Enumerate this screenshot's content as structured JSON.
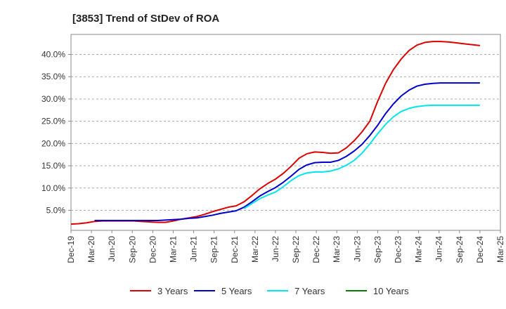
{
  "chart_data": {
    "type": "line",
    "title": "[3853]  Trend of StDev of ROA",
    "xlabel": "",
    "ylabel": "",
    "x_tick_labels": [
      "Dec-19",
      "Mar-20",
      "Jun-20",
      "Sep-20",
      "Dec-20",
      "Mar-21",
      "Jun-21",
      "Sep-21",
      "Dec-21",
      "Mar-22",
      "Jun-22",
      "Sep-22",
      "Dec-22",
      "Mar-23",
      "Jun-23",
      "Sep-23",
      "Dec-23",
      "Mar-24",
      "Jun-24",
      "Sep-24",
      "Dec-24",
      "Mar-25"
    ],
    "y_tick_labels": [
      "5.0%",
      "10.0%",
      "15.0%",
      "20.0%",
      "25.0%",
      "30.0%",
      "35.0%",
      "40.0%"
    ],
    "ylim": [
      0.5,
      44.5
    ],
    "grid": "horizontal dashed",
    "legend_position": "bottom",
    "series": [
      {
        "name": "3 Years",
        "color": "#dd0000",
        "values": [
          1.9,
          2.0,
          2.2,
          2.5,
          2.6,
          2.6,
          2.6,
          2.6,
          2.6,
          2.5,
          2.4,
          2.3,
          2.3,
          2.6,
          3.0,
          3.3,
          3.6,
          4.1,
          4.7,
          5.2,
          5.7,
          6.0,
          6.9,
          8.3,
          9.8,
          11.0,
          12.0,
          13.3,
          14.9,
          16.7,
          17.7,
          18.1,
          18.0,
          17.8,
          17.9,
          19.0,
          20.6,
          22.6,
          25.0,
          29.5,
          33.5,
          36.6,
          39.0,
          40.9,
          42.1,
          42.7,
          42.9,
          42.9,
          42.8,
          42.6,
          42.4,
          42.2,
          42.0
        ]
      },
      {
        "name": "5 Years",
        "color": "#0000cc",
        "values": [
          null,
          null,
          null,
          2.7,
          2.7,
          2.7,
          2.7,
          2.7,
          2.7,
          2.7,
          2.7,
          2.7,
          2.8,
          2.9,
          3.0,
          3.2,
          3.3,
          3.6,
          3.9,
          4.3,
          4.6,
          4.9,
          5.7,
          6.9,
          8.2,
          9.2,
          10.1,
          11.3,
          12.7,
          14.2,
          15.2,
          15.7,
          15.8,
          15.8,
          16.2,
          17.1,
          18.3,
          19.8,
          21.8,
          24.1,
          26.7,
          28.9,
          30.7,
          32.0,
          32.9,
          33.3,
          33.5,
          33.6,
          33.6,
          33.6,
          33.6,
          33.6,
          33.6
        ]
      },
      {
        "name": "7 Years",
        "color": "#00e5ee",
        "values": [
          null,
          null,
          null,
          null,
          null,
          null,
          null,
          null,
          null,
          null,
          null,
          null,
          null,
          null,
          null,
          null,
          null,
          null,
          null,
          null,
          null,
          null,
          5.4,
          6.5,
          7.6,
          8.4,
          9.1,
          10.3,
          11.7,
          12.8,
          13.4,
          13.6,
          13.6,
          13.8,
          14.3,
          15.1,
          16.2,
          17.8,
          19.9,
          22.2,
          24.3,
          26.0,
          27.2,
          27.9,
          28.3,
          28.5,
          28.6,
          28.6,
          28.6,
          28.6,
          28.6,
          28.6,
          28.6
        ]
      },
      {
        "name": "10 Years",
        "color": "#008000",
        "values": []
      }
    ]
  }
}
